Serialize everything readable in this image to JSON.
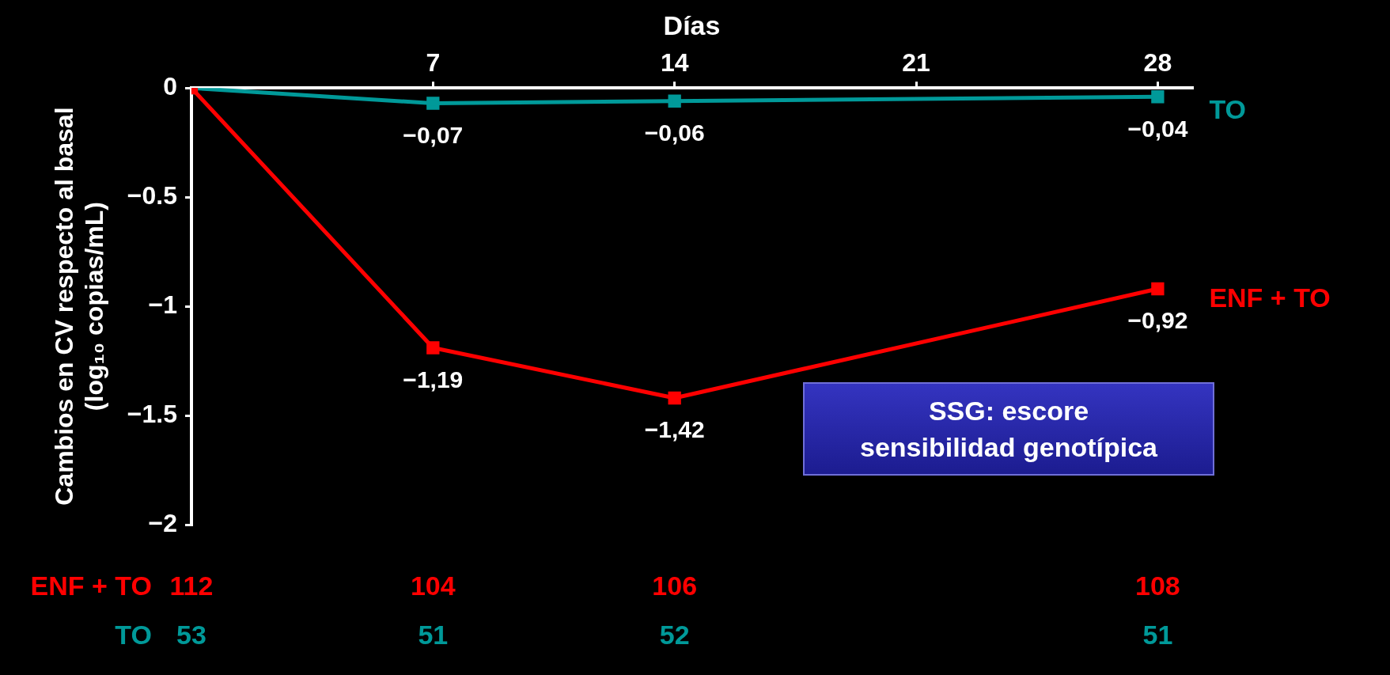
{
  "chart_data": {
    "type": "line",
    "xlabel": "Días",
    "ylabel": "Cambios en CV respecto al basal\n(log₁₀ copias/mL)",
    "x": [
      0,
      7,
      14,
      28
    ],
    "xlim": [
      0,
      29
    ],
    "xticks": [
      7,
      14,
      21,
      28
    ],
    "ylim": [
      -2,
      0
    ],
    "yticks": [
      0,
      {
        "value": -0.5,
        "label": "−0.5"
      },
      {
        "value": -1,
        "label": "−1"
      },
      {
        "value": -1.5,
        "label": "−1.5"
      },
      {
        "value": -2,
        "label": "−2"
      }
    ],
    "series": [
      {
        "name": "ENF + TO",
        "color": "#ff0000",
        "values": [
          0,
          -1.19,
          -1.42,
          -0.92
        ],
        "value_labels": [
          null,
          "−1,19",
          "−1,42",
          "−0,92"
        ]
      },
      {
        "name": "TO",
        "color": "#009999",
        "values": [
          0,
          -0.07,
          -0.06,
          -0.04
        ],
        "value_labels": [
          null,
          "−0,07",
          "−0,06",
          "−0,04"
        ]
      }
    ],
    "marker": "square",
    "line_style": "solid",
    "legend": false,
    "annotations": [
      "SSG: escore sensibilidad genotípica",
      "ENF + TO",
      "112",
      "104",
      "106",
      "108",
      "TO",
      "53",
      "51",
      "52",
      "51"
    ]
  }
}
